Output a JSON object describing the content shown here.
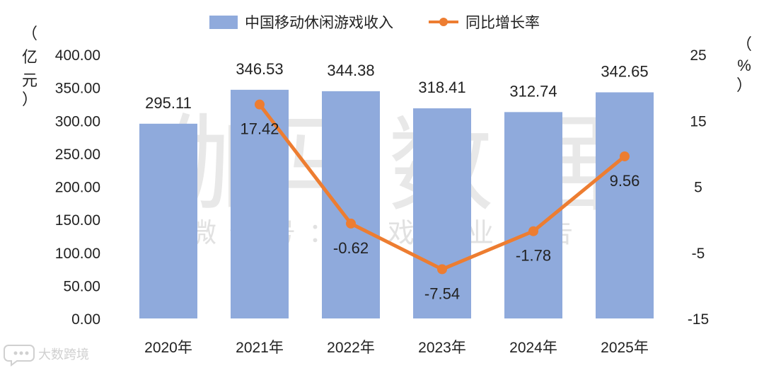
{
  "chart_data": {
    "type": "bar",
    "categories": [
      "2020年",
      "2021年",
      "2022年",
      "2023年",
      "2024年",
      "2025年"
    ],
    "series": [
      {
        "name": "中国移动休闲游戏收入",
        "type": "bar",
        "axis": "left",
        "values": [
          295.11,
          346.53,
          344.38,
          318.41,
          312.74,
          342.65
        ],
        "labels": [
          "295.11",
          "346.53",
          "344.38",
          "318.41",
          "312.74",
          "342.65"
        ],
        "color": "#8faadc"
      },
      {
        "name": "同比增长率",
        "type": "line",
        "axis": "right",
        "values": [
          null,
          17.42,
          -0.62,
          -7.54,
          -1.78,
          9.56
        ],
        "labels": [
          "",
          "17.42",
          "-0.62",
          "-7.54",
          "-1.78",
          "9.56"
        ],
        "color": "#ed7d31"
      }
    ],
    "y_left": {
      "unit_chars": [
        "（",
        "亿",
        "元",
        "）"
      ],
      "range": [
        0,
        400
      ],
      "ticks": [
        "0.00",
        "50.00",
        "100.00",
        "150.00",
        "200.00",
        "250.00",
        "300.00",
        "350.00",
        "400.00"
      ]
    },
    "y_right": {
      "unit_chars": [
        "（",
        "%",
        "）"
      ],
      "range": [
        -15,
        25
      ],
      "ticks": [
        "-15",
        "-5",
        "5",
        "15",
        "25"
      ]
    },
    "legend": "top-center",
    "grid": false
  },
  "watermark": {
    "main": "伽马数据",
    "sub": "微信号：游戏产业报告"
  },
  "corner_logo": {
    "text": "大数跨境",
    "icon": "chat-bubble-icon"
  }
}
